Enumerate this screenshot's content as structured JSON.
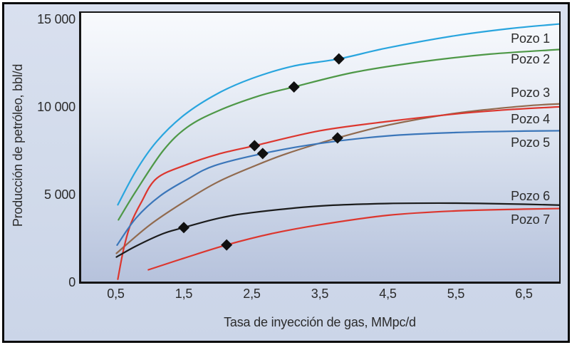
{
  "figure": {
    "y_axis_title": "Producción de petróleo, bbl/d",
    "x_axis_title": "Tasa de inyección de gas, MMpc/d",
    "y_ticks": [
      "15 000",
      "10 000",
      "5 000",
      "0"
    ],
    "x_ticks": [
      "0,5",
      "1,5",
      "2,5",
      "3,5",
      "4,5",
      "5,5",
      "6,5"
    ]
  },
  "chart_data": {
    "type": "line",
    "title": "",
    "xlabel": "Tasa de inyección de gas, MMpc/d",
    "ylabel": "Producción de petróleo, bbl/d",
    "xlim": [
      0,
      7.05
    ],
    "ylim": [
      0,
      15400
    ],
    "x_tick_values": [
      0.5,
      1.5,
      2.5,
      3.5,
      4.5,
      5.5,
      6.5
    ],
    "y_tick_values": [
      15000,
      10000,
      5000,
      0
    ],
    "grid": false,
    "legend_position": "inline-right",
    "marker_shape": "diamond",
    "marker_color": "#101010",
    "series": [
      {
        "name": "Pozo 1",
        "color": "#29A5DE",
        "points": [
          [
            0.53,
            4400
          ],
          [
            0.8,
            6350
          ],
          [
            1.1,
            8000
          ],
          [
            1.5,
            9500
          ],
          [
            2.0,
            10750
          ],
          [
            2.5,
            11600
          ],
          [
            3.1,
            12300
          ],
          [
            3.78,
            12720
          ],
          [
            4.5,
            13350
          ],
          [
            5.5,
            14050
          ],
          [
            6.3,
            14450
          ],
          [
            7.05,
            14720
          ]
        ],
        "marker": [
          3.78,
          12720
        ],
        "label_y": 13900
      },
      {
        "name": "Pozo 2",
        "color": "#4E9847",
        "points": [
          [
            0.54,
            3540
          ],
          [
            0.8,
            5200
          ],
          [
            1.2,
            7500
          ],
          [
            1.55,
            8820
          ],
          [
            2.0,
            9750
          ],
          [
            2.6,
            10600
          ],
          [
            3.12,
            11120
          ],
          [
            4.0,
            11950
          ],
          [
            5.0,
            12560
          ],
          [
            6.0,
            12990
          ],
          [
            7.05,
            13260
          ]
        ],
        "marker": [
          3.12,
          11120
        ],
        "label_y": 12700
      },
      {
        "name": "Pozo 3",
        "color": "#916A4E",
        "points": [
          [
            0.51,
            1630
          ],
          [
            1.0,
            3250
          ],
          [
            1.55,
            4680
          ],
          [
            2.0,
            5700
          ],
          [
            2.5,
            6550
          ],
          [
            3.0,
            7300
          ],
          [
            3.76,
            8210
          ],
          [
            4.5,
            8940
          ],
          [
            5.5,
            9620
          ],
          [
            6.5,
            10030
          ],
          [
            7.05,
            10160
          ]
        ],
        "marker": [
          3.76,
          8210
        ],
        "label_y": 10800
      },
      {
        "name": "Pozo 4",
        "color": "#DC362E",
        "points": [
          [
            0.53,
            150
          ],
          [
            0.62,
            1950
          ],
          [
            0.72,
            3300
          ],
          [
            0.87,
            4500
          ],
          [
            1.1,
            5900
          ],
          [
            1.55,
            6700
          ],
          [
            2.0,
            7280
          ],
          [
            2.54,
            7770
          ],
          [
            3.5,
            8620
          ],
          [
            4.5,
            9150
          ],
          [
            5.5,
            9580
          ],
          [
            6.3,
            9830
          ],
          [
            7.05,
            9990
          ]
        ],
        "marker": [
          2.54,
          7770
        ],
        "label_y": 9270
      },
      {
        "name": "Pozo 5",
        "color": "#3B76B9",
        "points": [
          [
            0.52,
            2100
          ],
          [
            0.8,
            3650
          ],
          [
            1.15,
            4900
          ],
          [
            1.55,
            5850
          ],
          [
            1.95,
            6630
          ],
          [
            2.66,
            7320
          ],
          [
            3.5,
            7900
          ],
          [
            4.5,
            8330
          ],
          [
            5.5,
            8520
          ],
          [
            6.5,
            8600
          ],
          [
            7.05,
            8620
          ]
        ],
        "marker": [
          2.66,
          7320
        ],
        "label_y": 7930
      },
      {
        "name": "Pozo 6",
        "color": "#1C1C1C",
        "points": [
          [
            0.51,
            1420
          ],
          [
            0.8,
            2050
          ],
          [
            1.2,
            2760
          ],
          [
            1.5,
            3100
          ],
          [
            2.0,
            3620
          ],
          [
            2.5,
            3950
          ],
          [
            3.5,
            4330
          ],
          [
            4.5,
            4470
          ],
          [
            5.5,
            4490
          ],
          [
            6.5,
            4430
          ],
          [
            7.05,
            4380
          ]
        ],
        "marker": [
          1.5,
          3100
        ],
        "label_y": 4880
      },
      {
        "name": "Pozo 7",
        "color": "#DC362E",
        "points": [
          [
            0.98,
            690
          ],
          [
            1.5,
            1350
          ],
          [
            2.13,
            2110
          ],
          [
            2.8,
            2760
          ],
          [
            3.5,
            3260
          ],
          [
            4.5,
            3800
          ],
          [
            5.5,
            4050
          ],
          [
            6.5,
            4150
          ],
          [
            7.05,
            4185
          ]
        ],
        "marker": [
          2.13,
          2110
        ],
        "label_y": 3540
      }
    ]
  }
}
